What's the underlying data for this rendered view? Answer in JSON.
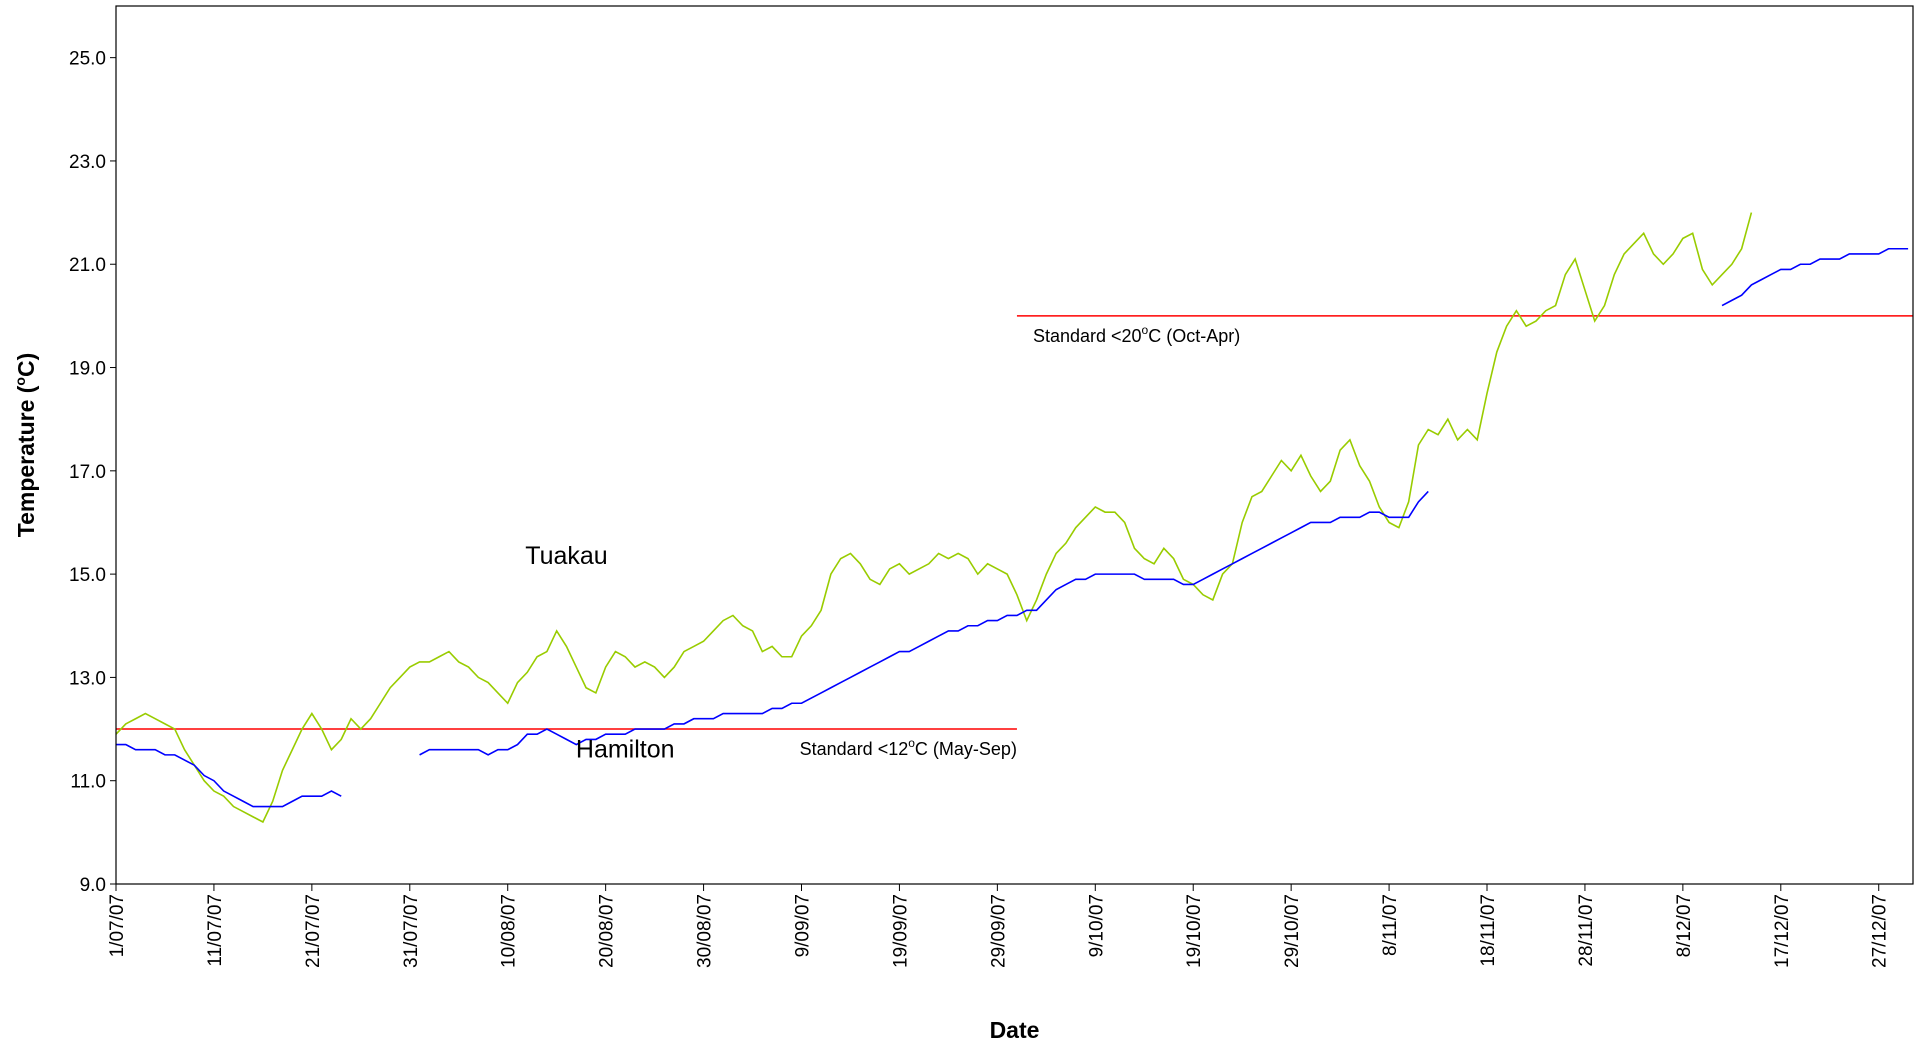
{
  "chart_data": {
    "type": "line",
    "xlabel": "Date",
    "ylabel": {
      "text": "Temperature (",
      "sup": "o",
      "tail": "C)"
    },
    "categories": [
      "1/07/07",
      null,
      null,
      null,
      null,
      null,
      null,
      null,
      null,
      null,
      "11/07/07",
      null,
      null,
      null,
      null,
      null,
      null,
      null,
      null,
      null,
      "21/07/07",
      null,
      null,
      null,
      null,
      null,
      null,
      null,
      null,
      null,
      "31/07/07",
      null,
      null,
      null,
      null,
      null,
      null,
      null,
      null,
      null,
      "10/08/07",
      null,
      null,
      null,
      null,
      null,
      null,
      null,
      null,
      null,
      "20/08/07",
      null,
      null,
      null,
      null,
      null,
      null,
      null,
      null,
      null,
      "30/08/07",
      null,
      null,
      null,
      null,
      null,
      null,
      null,
      null,
      null,
      "9/09/07",
      null,
      null,
      null,
      null,
      null,
      null,
      null,
      null,
      null,
      "19/09/07",
      null,
      null,
      null,
      null,
      null,
      null,
      null,
      null,
      null,
      "29/09/07",
      null,
      null,
      null,
      null,
      null,
      null,
      null,
      null,
      null,
      "9/10/07",
      null,
      null,
      null,
      null,
      null,
      null,
      null,
      null,
      null,
      "19/10/07",
      null,
      null,
      null,
      null,
      null,
      null,
      null,
      null,
      null,
      "29/10/07",
      null,
      null,
      null,
      null,
      null,
      null,
      null,
      null,
      null,
      "8/11/07",
      null,
      null,
      null,
      null,
      null,
      null,
      null,
      null,
      null,
      "18/11/07",
      null,
      null,
      null,
      null,
      null,
      null,
      null,
      null,
      null,
      "28/11/07",
      null,
      null,
      null,
      null,
      null,
      null,
      null,
      null,
      null,
      "8/12/07",
      null,
      null,
      null,
      null,
      null,
      null,
      null,
      null,
      null,
      "17/12/07",
      null,
      null,
      null,
      null,
      null,
      null,
      null,
      null,
      null,
      "27/12/07",
      null,
      null,
      null
    ],
    "series": [
      {
        "name": "Tuakau",
        "color": "#99cc00",
        "values": [
          11.9,
          12.1,
          12.2,
          12.3,
          12.2,
          12.1,
          12.0,
          11.6,
          11.3,
          11.0,
          10.8,
          10.7,
          10.5,
          10.4,
          10.3,
          10.2,
          10.6,
          11.2,
          11.6,
          12.0,
          12.3,
          12.0,
          11.6,
          11.8,
          12.2,
          12.0,
          12.2,
          12.5,
          12.8,
          13.0,
          13.2,
          13.3,
          13.3,
          13.4,
          13.5,
          13.3,
          13.2,
          13.0,
          12.9,
          12.7,
          12.5,
          12.9,
          13.1,
          13.4,
          13.5,
          13.9,
          13.6,
          13.2,
          12.8,
          12.7,
          13.2,
          13.5,
          13.4,
          13.2,
          13.3,
          13.2,
          13.0,
          13.2,
          13.5,
          13.6,
          13.7,
          13.9,
          14.1,
          14.2,
          14.0,
          13.9,
          13.5,
          13.6,
          13.4,
          13.4,
          13.8,
          14.0,
          14.3,
          15.0,
          15.3,
          15.4,
          15.2,
          14.9,
          14.8,
          15.1,
          15.2,
          15.0,
          15.1,
          15.2,
          15.4,
          15.3,
          15.4,
          15.3,
          15.0,
          15.2,
          15.1,
          15.0,
          14.6,
          14.1,
          14.5,
          15.0,
          15.4,
          15.6,
          15.9,
          16.1,
          16.3,
          16.2,
          16.2,
          16.0,
          15.5,
          15.3,
          15.2,
          15.5,
          15.3,
          14.9,
          14.8,
          14.6,
          14.5,
          15.0,
          15.2,
          16.0,
          16.5,
          16.6,
          16.9,
          17.2,
          17.0,
          17.3,
          16.9,
          16.6,
          16.8,
          17.4,
          17.6,
          17.1,
          16.8,
          16.3,
          16.0,
          15.9,
          16.4,
          17.5,
          17.8,
          17.7,
          18.0,
          17.6,
          17.8,
          17.6,
          18.5,
          19.3,
          19.8,
          20.1,
          19.8,
          19.9,
          20.1,
          20.2,
          20.8,
          21.1,
          20.5,
          19.9,
          20.2,
          20.8,
          21.2,
          21.4,
          21.6,
          21.2,
          21.0,
          21.2,
          21.5,
          21.6,
          20.9,
          20.6,
          20.8,
          21.0,
          21.3,
          22.0,
          null,
          null,
          null,
          null,
          null,
          null,
          null,
          null,
          null,
          null,
          null,
          null,
          null,
          null,
          null,
          null
        ]
      },
      {
        "name": "Hamilton",
        "color": "#0000ff",
        "values": [
          11.7,
          11.7,
          11.6,
          11.6,
          11.6,
          11.5,
          11.5,
          11.4,
          11.3,
          11.1,
          11.0,
          10.8,
          10.7,
          10.6,
          10.5,
          10.5,
          10.5,
          10.5,
          10.6,
          10.7,
          10.7,
          10.7,
          10.8,
          10.7,
          null,
          null,
          null,
          null,
          null,
          null,
          null,
          11.5,
          11.6,
          11.6,
          11.6,
          11.6,
          11.6,
          11.6,
          11.5,
          11.6,
          11.6,
          11.7,
          11.9,
          11.9,
          12.0,
          11.9,
          11.8,
          11.7,
          11.8,
          11.8,
          11.9,
          11.9,
          11.9,
          12.0,
          12.0,
          12.0,
          12.0,
          12.1,
          12.1,
          12.2,
          12.2,
          12.2,
          12.3,
          12.3,
          12.3,
          12.3,
          12.3,
          12.4,
          12.4,
          12.5,
          12.5,
          12.6,
          12.7,
          12.8,
          12.9,
          13.0,
          13.1,
          13.2,
          13.3,
          13.4,
          13.5,
          13.5,
          13.6,
          13.7,
          13.8,
          13.9,
          13.9,
          14.0,
          14.0,
          14.1,
          14.1,
          14.2,
          14.2,
          14.3,
          14.3,
          14.5,
          14.7,
          14.8,
          14.9,
          14.9,
          15.0,
          15.0,
          15.0,
          15.0,
          15.0,
          14.9,
          14.9,
          14.9,
          14.9,
          14.8,
          14.8,
          14.9,
          15.0,
          15.1,
          15.2,
          15.3,
          15.4,
          15.5,
          15.6,
          15.7,
          15.8,
          15.9,
          16.0,
          16.0,
          16.0,
          16.1,
          16.1,
          16.1,
          16.2,
          16.2,
          16.1,
          16.1,
          16.1,
          16.4,
          16.6,
          null,
          null,
          null,
          null,
          null,
          null,
          null,
          null,
          null,
          null,
          null,
          null,
          null,
          null,
          null,
          null,
          null,
          null,
          null,
          null,
          null,
          null,
          null,
          null,
          null,
          null,
          null,
          null,
          null,
          20.2,
          20.3,
          20.4,
          20.6,
          20.7,
          20.8,
          20.9,
          20.9,
          21.0,
          21.0,
          21.1,
          21.1,
          21.1,
          21.2,
          21.2,
          21.2,
          21.2,
          21.3,
          21.3,
          21.3
        ]
      }
    ],
    "reference_lines": [
      {
        "value": 12,
        "from": 0,
        "to": 92,
        "color": "#ff0000",
        "label": {
          "text": "Standard <12",
          "sup": "o",
          "tail": "C (May-Sep)"
        }
      },
      {
        "value": 20,
        "from": 92,
        "to": 183.5,
        "color": "#ff0000",
        "label": {
          "text": "Standard <20",
          "sup": "o",
          "tail": "C (Oct-Apr)"
        }
      }
    ],
    "ylim": [
      9,
      26
    ],
    "yticks": [
      {
        "value": 9,
        "label": "9.0"
      },
      {
        "value": 11,
        "label": "11.0"
      },
      {
        "value": 13,
        "label": "13.0"
      },
      {
        "value": 15,
        "label": "15.0"
      },
      {
        "value": 17,
        "label": "17.0"
      },
      {
        "value": 19,
        "label": "19.0"
      },
      {
        "value": 21,
        "label": "21.0"
      },
      {
        "value": 23,
        "label": "23.0"
      },
      {
        "value": 25,
        "label": "25.0"
      }
    ],
    "grid": false,
    "legend": "inline"
  }
}
